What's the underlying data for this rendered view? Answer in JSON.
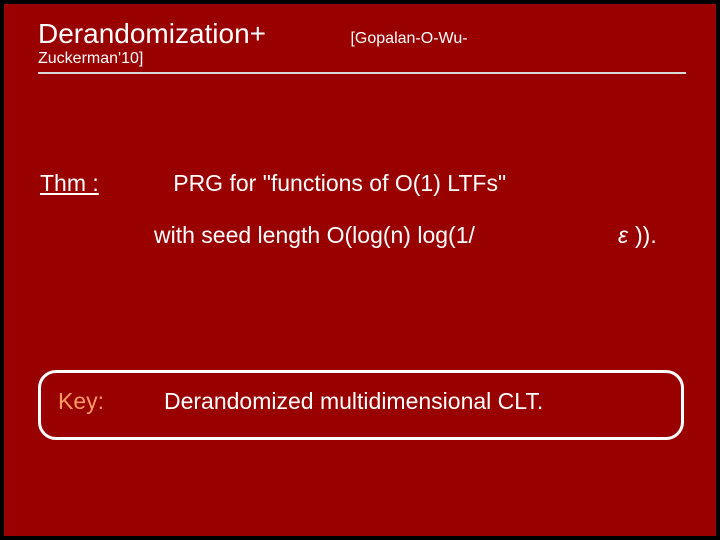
{
  "slide": {
    "background_color": "#990000",
    "outer_background": "#000000",
    "text_color": "#ffffff",
    "accent_color": "#ff9966",
    "title_main": "Derandomization+",
    "title_cite_top": "[Gopalan-O-Wu-",
    "title_cite_bottom": "Zuckerman'10]",
    "title_fontsize": 28,
    "cite_fontsize": 16,
    "body_fontsize": 23,
    "thm_label": "Thm :",
    "thm_text_1": "PRG for \"functions of O(1) LTFs\"",
    "thm_text_2": "with seed length O(log(n) log(1/",
    "thm_eps": "ε",
    "thm_tail": ")).",
    "key_label": "Key:",
    "key_text": "Derandomized multidimensional CLT.",
    "box_border_radius": 18,
    "box_border_color": "#ffffff"
  }
}
